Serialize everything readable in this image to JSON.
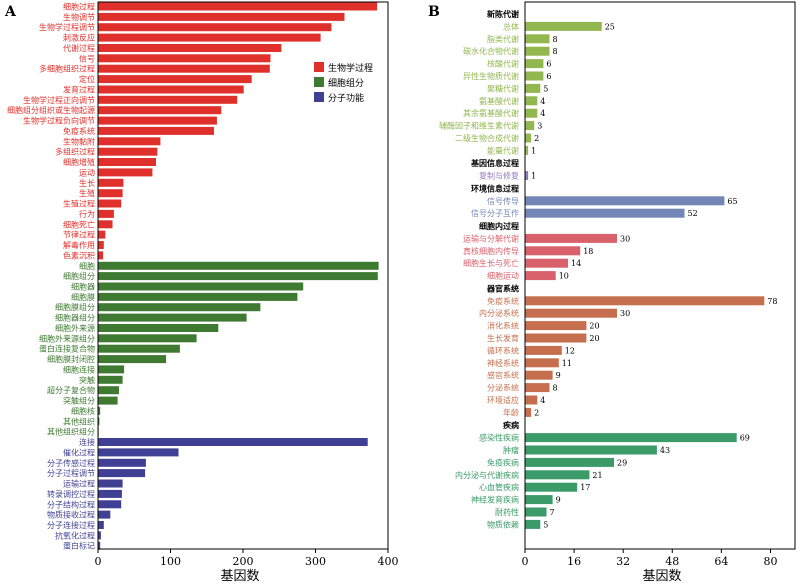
{
  "colors": {
    "bio": "#e0302b",
    "cell": "#3f7a32",
    "mol": "#3f3f94",
    "metab": "#92b74f",
    "gip": "#8c7cbf",
    "eip": "#7286b8",
    "cp": "#d9616c",
    "os": "#c66f4e",
    "dis": "#3a9a68"
  },
  "chart_data": [
    {
      "type": "bar",
      "orientation": "horizontal",
      "panel_label": "A",
      "xlabel": "基因数",
      "xlim": [
        0,
        400
      ],
      "xticks": [
        0,
        100,
        200,
        300,
        400
      ],
      "legend": [
        "生物学过程",
        "细胞组分",
        "分子功能"
      ],
      "legend_placement": "right",
      "groups": [
        {
          "name": "生物学过程",
          "color_key": "bio",
          "categories": [
            "细胞过程",
            "生物调节",
            "生物学过程调节",
            "刺激反应",
            "代谢过程",
            "信号",
            "多细胞组织过程",
            "定位",
            "发育过程",
            "生物学过程正向调节",
            "细胞组分组织或生物起源",
            "生物学过程负向调节",
            "免疫系统",
            "生物黏附",
            "多组织过程",
            "细胞增殖",
            "运动",
            "生长",
            "生殖",
            "生殖过程",
            "行为",
            "细胞死亡",
            "节律过程",
            "解毒作用",
            "色素沉积"
          ],
          "values": [
            385,
            340,
            322,
            307,
            253,
            238,
            237,
            212,
            201,
            192,
            170,
            164,
            160,
            86,
            82,
            80,
            75,
            35,
            34,
            32,
            22,
            20,
            10,
            8,
            7
          ]
        },
        {
          "name": "细胞组分",
          "color_key": "cell",
          "categories": [
            "细胞",
            "细胞组分",
            "细胞器",
            "细胞膜",
            "细胞膜组分",
            "细胞器组分",
            "细胞外来源",
            "细胞外来源组分",
            "蛋白连接复合物",
            "细胞膜封闭腔",
            "细胞连接",
            "突触",
            "超分子复合物",
            "突触组分",
            "细胞核",
            "其他组织",
            "其他组织组分"
          ],
          "values": [
            387,
            386,
            283,
            275,
            224,
            205,
            166,
            136,
            113,
            94,
            36,
            34,
            29,
            27,
            3,
            2,
            1
          ]
        },
        {
          "name": "分子功能",
          "color_key": "mol",
          "categories": [
            "连接",
            "催化过程",
            "分子传感过程",
            "分子过程调节",
            "运输过程",
            "转录调控过程",
            "分子结构过程",
            "物质接收过程",
            "分子连接过程",
            "抗氧化过程",
            "蛋白标记"
          ],
          "values": [
            372,
            111,
            66,
            65,
            34,
            33,
            32,
            17,
            8,
            4,
            3
          ]
        }
      ]
    },
    {
      "type": "bar",
      "orientation": "horizontal",
      "panel_label": "B",
      "xlabel": "基因数",
      "xlim": [
        0,
        88
      ],
      "xticks": [
        0,
        16,
        32,
        48,
        64,
        80
      ],
      "groups": [
        {
          "name": "新陈代谢",
          "color_key": "metab",
          "categories": [
            "总体",
            "脂类代谢",
            "碳水化合物代谢",
            "核酸代谢",
            "异性生物质代谢",
            "聚糖代谢",
            "氨基酸代谢",
            "其余氨基酸代谢",
            "辅酶因子和维生素代谢",
            "二级生物合成代谢",
            "能量代谢"
          ],
          "values": [
            25,
            8,
            8,
            6,
            6,
            5,
            4,
            4,
            3,
            2,
            1
          ]
        },
        {
          "name": "基因信息过程",
          "color_key": "gip",
          "categories": [
            "复制与修复"
          ],
          "values": [
            1
          ]
        },
        {
          "name": "环境信息过程",
          "color_key": "eip",
          "categories": [
            "信号传导",
            "信号分子互作"
          ],
          "values": [
            65,
            52
          ]
        },
        {
          "name": "细胞内过程",
          "color_key": "cp",
          "categories": [
            "运输与分解代谢",
            "真核细胞内传导",
            "细胞生长与死亡",
            "细胞运动"
          ],
          "values": [
            30,
            18,
            14,
            10
          ]
        },
        {
          "name": "器官系统",
          "color_key": "os",
          "categories": [
            "免疫系统",
            "内分泌系统",
            "消化系统",
            "生长发育",
            "循环系统",
            "神经系统",
            "感官系统",
            "分泌系统",
            "环境适应",
            "年龄"
          ],
          "values": [
            78,
            30,
            20,
            20,
            12,
            11,
            9,
            8,
            4,
            2
          ]
        },
        {
          "name": "疾病",
          "color_key": "dis",
          "categories": [
            "感染性疾病",
            "肿瘤",
            "免疫疾病",
            "内分泌与代谢疾病",
            "心血管疾病",
            "神经发育疾病",
            "耐药性",
            "物质依赖"
          ],
          "values": [
            69,
            43,
            29,
            21,
            17,
            9,
            7,
            5
          ]
        }
      ]
    }
  ]
}
